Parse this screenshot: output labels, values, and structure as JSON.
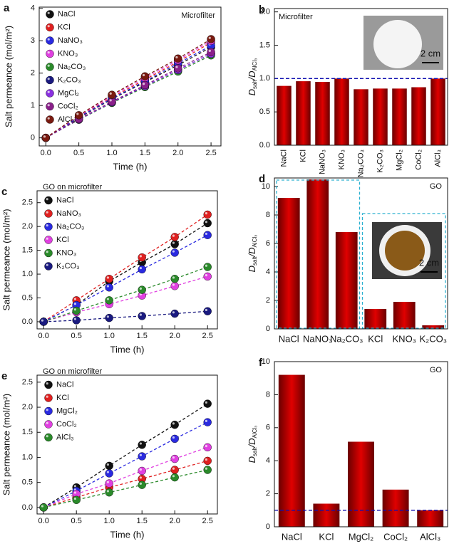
{
  "chart_data": [
    {
      "type": "line",
      "panel": "a",
      "annotation": "Microfilter",
      "xlabel": "Time (h)",
      "ylabel": "Salt permeance (mol/m²)",
      "x": [
        0,
        0.5,
        1,
        1.5,
        2,
        2.5
      ],
      "xlim": [
        -0.1,
        2.65
      ],
      "xticks": [
        {
          "value": 0,
          "label": "0.0"
        },
        {
          "value": 0.5,
          "label": "0.5"
        },
        {
          "value": 1,
          "label": "1.0"
        },
        {
          "value": 1.5,
          "label": "1.5"
        },
        {
          "value": 2,
          "label": "2.0"
        },
        {
          "value": 2.5,
          "label": "2.5"
        }
      ],
      "ylim": [
        -0.25,
        4.04
      ],
      "yticks": [
        0,
        1,
        2,
        3,
        4
      ],
      "series": [
        {
          "name": "NaCl",
          "color": "#111111",
          "values": [
            0,
            0.62,
            1.2,
            1.72,
            2.25,
            2.8
          ]
        },
        {
          "name": "KCl",
          "color": "#e02020",
          "values": [
            0,
            0.65,
            1.25,
            1.8,
            2.35,
            2.95
          ]
        },
        {
          "name": "NaNO₃",
          "color": "#2a2ae0",
          "values": [
            0,
            0.64,
            1.22,
            1.75,
            2.3,
            2.85
          ]
        },
        {
          "name": "KNO₃",
          "color": "#e040e0",
          "values": [
            0,
            0.68,
            1.3,
            1.85,
            2.4,
            3.0
          ]
        },
        {
          "name": "Na₂CO₃",
          "color": "#2a8a2a",
          "values": [
            0,
            0.56,
            1.08,
            1.57,
            2.05,
            2.55
          ]
        },
        {
          "name": "K₂CO₃",
          "color": "#1a1a80",
          "values": [
            0,
            0.57,
            1.1,
            1.6,
            2.1,
            2.6
          ]
        },
        {
          "name": "MgCl₂",
          "color": "#8a30e0",
          "values": [
            0,
            0.57,
            1.1,
            1.6,
            2.1,
            2.6
          ]
        },
        {
          "name": "CoCl₂",
          "color": "#8a208a",
          "values": [
            0,
            0.58,
            1.12,
            1.63,
            2.15,
            2.65
          ]
        },
        {
          "name": "AlCl₃",
          "color": "#7a1a10",
          "values": [
            0,
            0.7,
            1.33,
            1.9,
            2.45,
            3.05
          ]
        }
      ]
    },
    {
      "type": "bar",
      "panel": "b",
      "annotation": "Microfilter",
      "scale_label": "2 cm",
      "ylabel": [
        "D",
        "salt",
        "/D",
        "AlCl₃"
      ],
      "categories": [
        "NaCl",
        "KCl",
        "NaNO₃",
        "KNO₃",
        "Na₂CO₃",
        "K₂CO₃",
        "MgCl₂",
        "CoCl₂",
        "AlCl₃"
      ],
      "values": [
        0.89,
        0.96,
        0.95,
        1.0,
        0.84,
        0.85,
        0.85,
        0.87,
        1.0
      ],
      "color": "#e00000",
      "ylim": [
        0,
        2.05
      ],
      "yticks": [
        {
          "value": 0,
          "label": "0.0"
        },
        {
          "value": 0.5,
          "label": "0.5"
        },
        {
          "value": 1,
          "label": "1.0"
        },
        {
          "value": 1.5,
          "label": "1.5"
        },
        {
          "value": 2,
          "label": "2.0"
        }
      ],
      "reference_line": 1,
      "reference_color": "#1010b0",
      "rotate_labels": true
    },
    {
      "type": "line",
      "panel": "c",
      "legend_title": "GO on microfilter",
      "xlabel": "Time (h)",
      "ylabel": "Salt permeance (mol/m²)",
      "x": [
        0,
        0.5,
        1,
        1.5,
        2,
        2.5
      ],
      "xlim": [
        -0.1,
        2.65
      ],
      "xticks": [
        {
          "value": 0,
          "label": "0.0"
        },
        {
          "value": 0.5,
          "label": "0.5"
        },
        {
          "value": 1,
          "label": "1.0"
        },
        {
          "value": 1.5,
          "label": "1.5"
        },
        {
          "value": 2,
          "label": "2.0"
        },
        {
          "value": 2.5,
          "label": "2.5"
        }
      ],
      "ylim": [
        -0.15,
        2.75
      ],
      "yticks": [
        {
          "value": 0,
          "label": "0.0"
        },
        {
          "value": 0.5,
          "label": "0.5"
        },
        {
          "value": 1,
          "label": "1.0"
        },
        {
          "value": 1.5,
          "label": "1.5"
        },
        {
          "value": 2,
          "label": "2.0"
        },
        {
          "value": 2.5,
          "label": "2.5"
        }
      ],
      "series": [
        {
          "name": "NaCl",
          "color": "#111111",
          "values": [
            0,
            0.35,
            0.85,
            1.25,
            1.63,
            2.07
          ]
        },
        {
          "name": "NaNO₃",
          "color": "#e02020",
          "values": [
            0,
            0.45,
            0.9,
            1.35,
            1.78,
            2.25
          ]
        },
        {
          "name": "Na₂CO₃",
          "color": "#2a2ae0",
          "values": [
            0,
            0.35,
            0.72,
            1.1,
            1.45,
            1.82
          ]
        },
        {
          "name": "KCl",
          "color": "#e040e0",
          "values": [
            0,
            0.2,
            0.37,
            0.55,
            0.75,
            0.95
          ]
        },
        {
          "name": "KNO₃",
          "color": "#2a8a2a",
          "values": [
            0,
            0.23,
            0.45,
            0.67,
            0.9,
            1.15
          ]
        },
        {
          "name": "K₂CO₃",
          "color": "#1a1a80",
          "values": [
            0,
            0.03,
            0.08,
            0.12,
            0.17,
            0.22
          ]
        }
      ]
    },
    {
      "type": "bar",
      "panel": "d",
      "annotation": "GO",
      "scale_label": "2 cm",
      "ylabel": [
        "D",
        "salt",
        "/D",
        "AlCl₃"
      ],
      "categories": [
        "NaCl",
        "NaNO₃",
        "Na₂CO₃",
        "KCl",
        "KNO₃",
        "K₂CO₃"
      ],
      "values": [
        9.2,
        10.5,
        6.8,
        1.4,
        1.9,
        0.25
      ],
      "color": "#e00000",
      "ylim": [
        0,
        10.6
      ],
      "yticks": [
        0,
        2,
        4,
        6,
        8,
        10
      ],
      "group_boxes": true
    },
    {
      "type": "line",
      "panel": "e",
      "legend_title": "GO on microfilter",
      "xlabel": "Time (h)",
      "ylabel": "Salt permeance (mol/m²)",
      "x": [
        0,
        0.5,
        1,
        1.5,
        2,
        2.5
      ],
      "xlim": [
        -0.1,
        2.65
      ],
      "xticks": [
        {
          "value": 0,
          "label": "0.0"
        },
        {
          "value": 0.5,
          "label": "0.5"
        },
        {
          "value": 1,
          "label": "1.0"
        },
        {
          "value": 1.5,
          "label": "1.5"
        },
        {
          "value": 2,
          "label": "2.0"
        },
        {
          "value": 2.5,
          "label": "2.5"
        }
      ],
      "ylim": [
        -0.13,
        2.64
      ],
      "yticks": [
        {
          "value": 0,
          "label": "0.0"
        },
        {
          "value": 0.5,
          "label": "0.5"
        },
        {
          "value": 1,
          "label": "1.0"
        },
        {
          "value": 1.5,
          "label": "1.5"
        },
        {
          "value": 2,
          "label": "2.0"
        },
        {
          "value": 2.5,
          "label": "2.5"
        }
      ],
      "series": [
        {
          "name": "NaCl",
          "color": "#111111",
          "values": [
            0,
            0.4,
            0.83,
            1.25,
            1.65,
            2.07
          ]
        },
        {
          "name": "KCl",
          "color": "#e02020",
          "values": [
            0,
            0.2,
            0.4,
            0.57,
            0.75,
            0.93
          ]
        },
        {
          "name": "MgCl₂",
          "color": "#2a2ae0",
          "values": [
            0,
            0.33,
            0.68,
            1.02,
            1.37,
            1.7
          ]
        },
        {
          "name": "CoCl₂",
          "color": "#e040e0",
          "values": [
            0,
            0.27,
            0.48,
            0.73,
            0.97,
            1.2
          ]
        },
        {
          "name": "AlCl₃",
          "color": "#2a8a2a",
          "values": [
            0,
            0.15,
            0.3,
            0.45,
            0.6,
            0.75
          ]
        }
      ]
    },
    {
      "type": "bar",
      "panel": "f",
      "annotation": "GO",
      "ylabel": [
        "D",
        "salt",
        "/D",
        "AlCl₃"
      ],
      "categories": [
        "NaCl",
        "KCl",
        "MgCl₂",
        "CoCl₂",
        "AlCl₃"
      ],
      "values": [
        9.2,
        1.4,
        5.15,
        2.25,
        1.0
      ],
      "color": "#e00000",
      "ylim": [
        0,
        10
      ],
      "yticks": [
        0,
        2,
        4,
        6,
        8,
        10
      ],
      "reference_line": 1,
      "reference_color": "#1010b0"
    }
  ]
}
